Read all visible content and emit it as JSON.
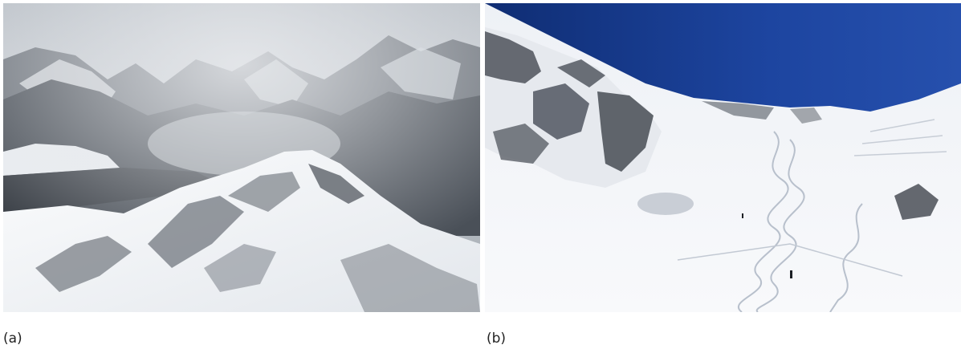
{
  "figure": {
    "panels": [
      {
        "label": "(a)",
        "image": "snow-covered-mountain-ridge-in-cloud"
      },
      {
        "label": "(b)",
        "image": "snowy-mountain-bowl-with-ski-tracks-and-skiers"
      }
    ]
  },
  "colors": {
    "sky_a": "#c9ced4",
    "sky_b": "#1a3d8f",
    "snow": "#f3f5f8",
    "rock": "#5b6068"
  }
}
